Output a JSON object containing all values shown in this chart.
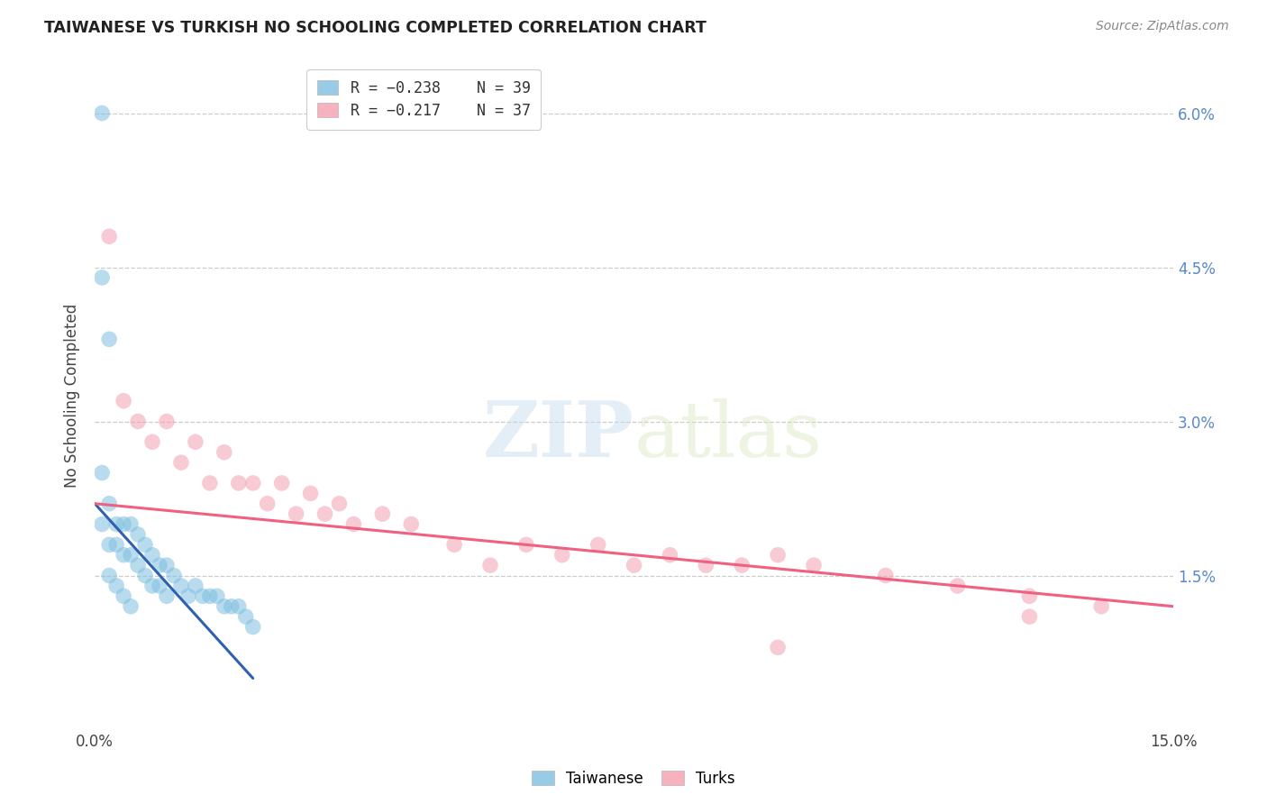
{
  "title": "TAIWANESE VS TURKISH NO SCHOOLING COMPLETED CORRELATION CHART",
  "source": "Source: ZipAtlas.com",
  "ylabel": "No Schooling Completed",
  "xlim": [
    0.0,
    0.15
  ],
  "ylim": [
    0.0,
    0.065
  ],
  "xticks": [
    0.0,
    0.05,
    0.1,
    0.15
  ],
  "xticklabels": [
    "0.0%",
    "",
    "",
    "15.0%"
  ],
  "yticks": [
    0.0,
    0.015,
    0.03,
    0.045,
    0.06
  ],
  "yticklabels_right": [
    "",
    "1.5%",
    "3.0%",
    "4.5%",
    "6.0%"
  ],
  "legend_labels": [
    "Taiwanese",
    "Turks"
  ],
  "legend_R": [
    "R = −0.238",
    "R = −0.217"
  ],
  "legend_N": [
    "N = 39",
    "N = 37"
  ],
  "taiwanese_color": "#7fbfdf",
  "turks_color": "#f4a0b0",
  "trendline_taiwanese_color": "#3060b0",
  "trendline_turks_color": "#f06080",
  "watermark_zip": "ZIP",
  "watermark_atlas": "atlas",
  "grid_color": "#cccccc",
  "background_color": "#ffffff",
  "tick_color": "#5588cc",
  "taiwanese_x": [
    0.001,
    0.001,
    0.001,
    0.002,
    0.002,
    0.002,
    0.003,
    0.003,
    0.004,
    0.004,
    0.005,
    0.005,
    0.006,
    0.006,
    0.007,
    0.007,
    0.008,
    0.008,
    0.009,
    0.009,
    0.01,
    0.01,
    0.011,
    0.012,
    0.013,
    0.014,
    0.015,
    0.016,
    0.017,
    0.018,
    0.019,
    0.02,
    0.021,
    0.022,
    0.001,
    0.002,
    0.003,
    0.004,
    0.005
  ],
  "taiwanese_y": [
    0.06,
    0.025,
    0.02,
    0.022,
    0.018,
    0.015,
    0.02,
    0.018,
    0.02,
    0.017,
    0.02,
    0.017,
    0.019,
    0.016,
    0.018,
    0.015,
    0.017,
    0.014,
    0.016,
    0.014,
    0.016,
    0.013,
    0.015,
    0.014,
    0.013,
    0.014,
    0.013,
    0.013,
    0.013,
    0.012,
    0.012,
    0.012,
    0.011,
    0.01,
    0.044,
    0.038,
    0.014,
    0.013,
    0.012
  ],
  "turks_x": [
    0.002,
    0.004,
    0.006,
    0.008,
    0.01,
    0.012,
    0.014,
    0.016,
    0.018,
    0.02,
    0.022,
    0.024,
    0.026,
    0.028,
    0.03,
    0.032,
    0.034,
    0.036,
    0.04,
    0.044,
    0.05,
    0.055,
    0.06,
    0.065,
    0.07,
    0.075,
    0.08,
    0.085,
    0.09,
    0.095,
    0.1,
    0.11,
    0.12,
    0.13,
    0.14,
    0.095,
    0.13
  ],
  "turks_y": [
    0.048,
    0.032,
    0.03,
    0.028,
    0.03,
    0.026,
    0.028,
    0.024,
    0.027,
    0.024,
    0.024,
    0.022,
    0.024,
    0.021,
    0.023,
    0.021,
    0.022,
    0.02,
    0.021,
    0.02,
    0.018,
    0.016,
    0.018,
    0.017,
    0.018,
    0.016,
    0.017,
    0.016,
    0.016,
    0.017,
    0.016,
    0.015,
    0.014,
    0.013,
    0.012,
    0.008,
    0.011
  ],
  "tw_trend_x": [
    0.0,
    0.022
  ],
  "tw_trend_y": [
    0.022,
    0.005
  ],
  "tk_trend_x": [
    0.0,
    0.15
  ],
  "tk_trend_y": [
    0.022,
    0.012
  ]
}
